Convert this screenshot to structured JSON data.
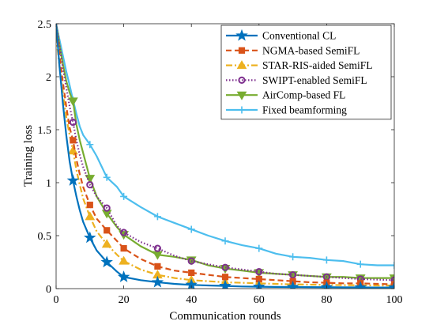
{
  "chart_data": {
    "type": "line",
    "xlabel": "Communication rounds",
    "ylabel": "Training loss",
    "xlim": [
      0,
      100
    ],
    "ylim": [
      0,
      2.5
    ],
    "xticks": [
      "0",
      "20",
      "40",
      "60",
      "80",
      "100"
    ],
    "yticks": [
      "0",
      "0.5",
      "1",
      "1.5",
      "2",
      "2.5"
    ],
    "legend_position": "top-right",
    "grid": false,
    "series": [
      {
        "name": "Conventional CL",
        "color": "#0072BD",
        "dash": "solid",
        "marker": "star",
        "x": [
          0,
          1,
          2,
          3,
          4,
          5,
          6,
          7,
          8,
          10,
          12,
          15,
          18,
          20,
          25,
          30,
          35,
          40,
          45,
          50,
          55,
          60,
          65,
          70,
          75,
          80,
          85,
          90,
          95,
          100
        ],
        "y": [
          2.5,
          2.1,
          1.75,
          1.45,
          1.2,
          1.02,
          0.87,
          0.74,
          0.63,
          0.48,
          0.36,
          0.25,
          0.16,
          0.11,
          0.08,
          0.06,
          0.045,
          0.035,
          0.03,
          0.025,
          0.02,
          0.018,
          0.016,
          0.015,
          0.014,
          0.013,
          0.012,
          0.011,
          0.01,
          0.01
        ],
        "marker_x": [
          5,
          10,
          15,
          20,
          30,
          40,
          50,
          60,
          70,
          80,
          90,
          100
        ]
      },
      {
        "name": "NGMA-based SemiFL",
        "color": "#D95319",
        "dash": "dashed",
        "marker": "square",
        "x": [
          0,
          1,
          2,
          3,
          4,
          5,
          6,
          7,
          8,
          10,
          12,
          15,
          18,
          20,
          25,
          30,
          35,
          40,
          45,
          50,
          55,
          60,
          65,
          70,
          75,
          80,
          85,
          90,
          95,
          100
        ],
        "y": [
          2.5,
          2.2,
          1.95,
          1.72,
          1.52,
          1.4,
          1.22,
          1.08,
          0.96,
          0.79,
          0.66,
          0.55,
          0.45,
          0.38,
          0.28,
          0.21,
          0.17,
          0.15,
          0.13,
          0.11,
          0.1,
          0.09,
          0.08,
          0.07,
          0.06,
          0.055,
          0.05,
          0.05,
          0.045,
          0.04
        ],
        "marker_x": [
          5,
          10,
          15,
          20,
          30,
          40,
          50,
          60,
          70,
          80,
          90,
          100
        ]
      },
      {
        "name": "STAR-RIS-aided SemiFL",
        "color": "#EDB120",
        "dash": "dashdot",
        "marker": "triangle",
        "x": [
          0,
          1,
          2,
          3,
          4,
          5,
          6,
          7,
          8,
          10,
          12,
          15,
          18,
          20,
          25,
          30,
          35,
          40,
          45,
          50,
          55,
          60,
          65,
          70,
          75,
          80,
          85,
          90,
          95,
          100
        ],
        "y": [
          2.38,
          2.1,
          1.85,
          1.62,
          1.45,
          1.3,
          1.12,
          0.98,
          0.85,
          0.68,
          0.54,
          0.42,
          0.32,
          0.26,
          0.18,
          0.13,
          0.1,
          0.08,
          0.07,
          0.06,
          0.055,
          0.05,
          0.045,
          0.04,
          0.038,
          0.035,
          0.033,
          0.032,
          0.03,
          0.03
        ],
        "marker_x": [
          5,
          10,
          15,
          20,
          30,
          40,
          50,
          60,
          70,
          80,
          90,
          100
        ]
      },
      {
        "name": "SWIPT-enabled SemiFL",
        "color": "#7E2F8E",
        "dash": "dotted",
        "marker": "circle",
        "x": [
          0,
          1,
          2,
          3,
          4,
          5,
          6,
          7,
          8,
          10,
          12,
          15,
          18,
          20,
          25,
          30,
          35,
          40,
          45,
          50,
          55,
          60,
          65,
          70,
          75,
          80,
          85,
          90,
          95,
          100
        ],
        "y": [
          2.5,
          2.3,
          2.08,
          1.9,
          1.72,
          1.57,
          1.4,
          1.26,
          1.15,
          0.98,
          0.87,
          0.76,
          0.59,
          0.53,
          0.44,
          0.38,
          0.31,
          0.26,
          0.23,
          0.2,
          0.18,
          0.16,
          0.14,
          0.13,
          0.12,
          0.11,
          0.1,
          0.09,
          0.085,
          0.08
        ],
        "marker_x": [
          5,
          10,
          15,
          20,
          30,
          40,
          50,
          60,
          70,
          80,
          90,
          100
        ]
      },
      {
        "name": "AirComp-based FL",
        "color": "#77AC30",
        "dash": "solid",
        "marker": "triangle-down",
        "x": [
          0,
          1,
          2,
          3,
          4,
          5,
          6,
          7,
          8,
          10,
          12,
          15,
          18,
          20,
          25,
          30,
          35,
          40,
          45,
          50,
          55,
          60,
          65,
          70,
          75,
          80,
          85,
          90,
          95,
          100
        ],
        "y": [
          2.5,
          2.3,
          2.12,
          1.96,
          1.85,
          1.77,
          1.55,
          1.4,
          1.28,
          1.04,
          0.87,
          0.71,
          0.58,
          0.51,
          0.4,
          0.32,
          0.3,
          0.27,
          0.22,
          0.19,
          0.17,
          0.15,
          0.14,
          0.13,
          0.12,
          0.11,
          0.11,
          0.1,
          0.1,
          0.1
        ],
        "marker_x": [
          5,
          10,
          15,
          20,
          30,
          40,
          50,
          60,
          70,
          80,
          90,
          100
        ]
      },
      {
        "name": "Fixed beamforming",
        "color": "#4DBEEE",
        "dash": "solid",
        "marker": "plus",
        "x": [
          0,
          1,
          2,
          3,
          4,
          5,
          6,
          7,
          8,
          10,
          12,
          15,
          18,
          20,
          25,
          30,
          35,
          40,
          45,
          50,
          55,
          60,
          65,
          70,
          75,
          80,
          85,
          90,
          95,
          100
        ],
        "y": [
          2.5,
          2.35,
          2.2,
          2.05,
          1.92,
          1.78,
          1.65,
          1.53,
          1.45,
          1.36,
          1.25,
          1.05,
          0.96,
          0.87,
          0.77,
          0.68,
          0.62,
          0.56,
          0.5,
          0.45,
          0.41,
          0.38,
          0.33,
          0.3,
          0.29,
          0.27,
          0.26,
          0.23,
          0.22,
          0.22
        ],
        "marker_x": [
          5,
          10,
          15,
          20,
          30,
          40,
          50,
          60,
          70,
          80,
          90,
          100
        ]
      }
    ]
  }
}
